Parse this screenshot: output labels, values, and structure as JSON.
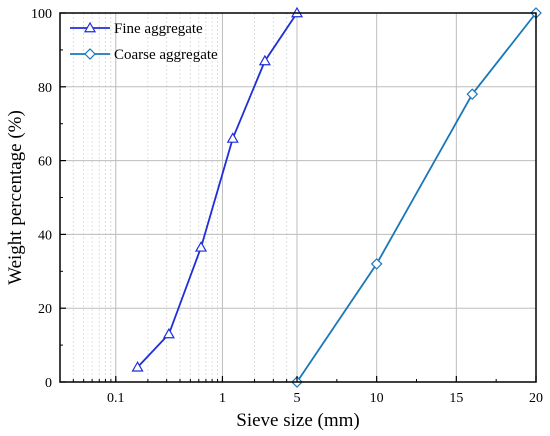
{
  "chart_data": {
    "type": "line",
    "xlabel": "Sieve size (mm)",
    "ylabel": "Weight percentage (%)",
    "ylim": [
      0,
      100
    ],
    "y_ticks": [
      0,
      20,
      40,
      60,
      80,
      100
    ],
    "x_axis": {
      "left_segment": {
        "scale": "log",
        "range": [
          0.03,
          5
        ],
        "tick_labels": [
          "0.1",
          "1",
          "5"
        ]
      },
      "right_segment": {
        "scale": "linear",
        "range": [
          5,
          20
        ],
        "tick_labels": [
          "10",
          "15",
          "20"
        ]
      }
    },
    "grid": true,
    "legend_position": "top-left",
    "series": [
      {
        "name": "Fine aggregate",
        "marker": "triangle",
        "color": "#1f2fd8",
        "x": [
          0.16,
          0.315,
          0.63,
          1.25,
          2.5,
          5
        ],
        "y": [
          4,
          13,
          36.5,
          66,
          87,
          100
        ]
      },
      {
        "name": "Coarse aggregate",
        "marker": "diamond",
        "color": "#1a78b8",
        "x": [
          5,
          10,
          16,
          20
        ],
        "y": [
          0,
          32,
          78,
          100
        ]
      }
    ]
  }
}
